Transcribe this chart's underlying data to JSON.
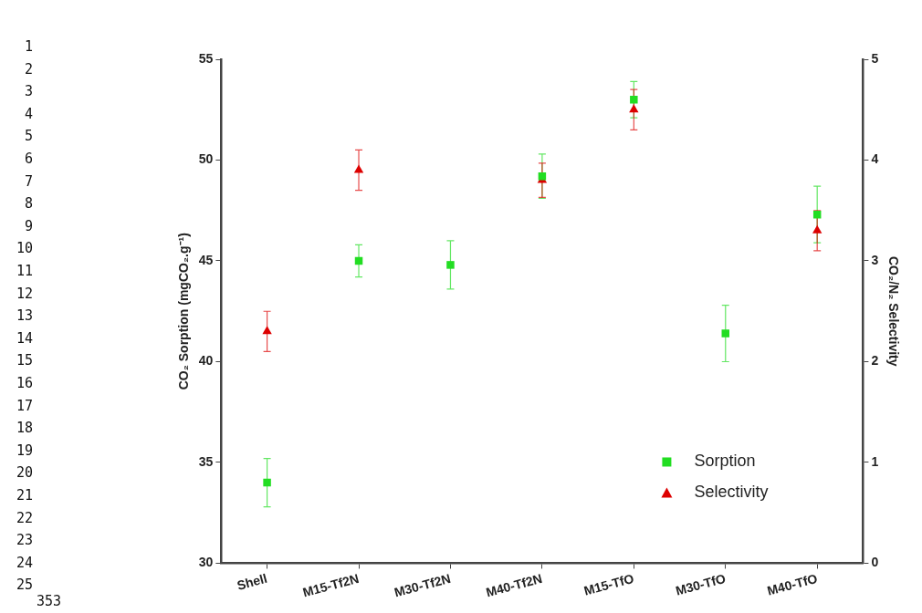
{
  "chart_data": {
    "type": "scatter",
    "categories": [
      "Shell",
      "M15-Tf2N",
      "M30-Tf2N",
      "M40-Tf2N",
      "M15-TfO",
      "M30-TfO",
      "M40-TfO"
    ],
    "ylabel": "CO₂ Sorption (mgCO₂.g⁻¹)",
    "y2label": "CO₂/N₂ Selectivity",
    "ylim": [
      30,
      55
    ],
    "yticks": [
      30,
      35,
      40,
      45,
      50,
      55
    ],
    "y2lim": [
      0,
      5
    ],
    "y2ticks": [
      0,
      1,
      2,
      3,
      4,
      5
    ],
    "series": [
      {
        "name": "Sorption",
        "color": "#22dd22",
        "marker": "square",
        "values": [
          34.0,
          45.0,
          44.8,
          49.2,
          53.0,
          41.4,
          47.3
        ],
        "errors": [
          1.2,
          0.8,
          1.2,
          1.1,
          0.9,
          1.4,
          1.4
        ]
      },
      {
        "name": "Selectivity",
        "color": "#dd0000",
        "marker": "triangle",
        "axis": "y2",
        "values": [
          2.3,
          3.9,
          null,
          3.8,
          4.5,
          null,
          3.3
        ],
        "errors": [
          0.2,
          0.2,
          null,
          0.17,
          0.2,
          null,
          0.2
        ]
      }
    ],
    "legend": "bottom right",
    "grid": false,
    "annotations": [
      "1",
      "2",
      "3",
      "4",
      "5",
      "6",
      "7",
      "8",
      "9",
      "10",
      "11",
      "12",
      "13",
      "14",
      "15",
      "16",
      "17",
      "18",
      "19",
      "20",
      "21",
      "22",
      "23",
      "24",
      "25",
      "353"
    ]
  }
}
